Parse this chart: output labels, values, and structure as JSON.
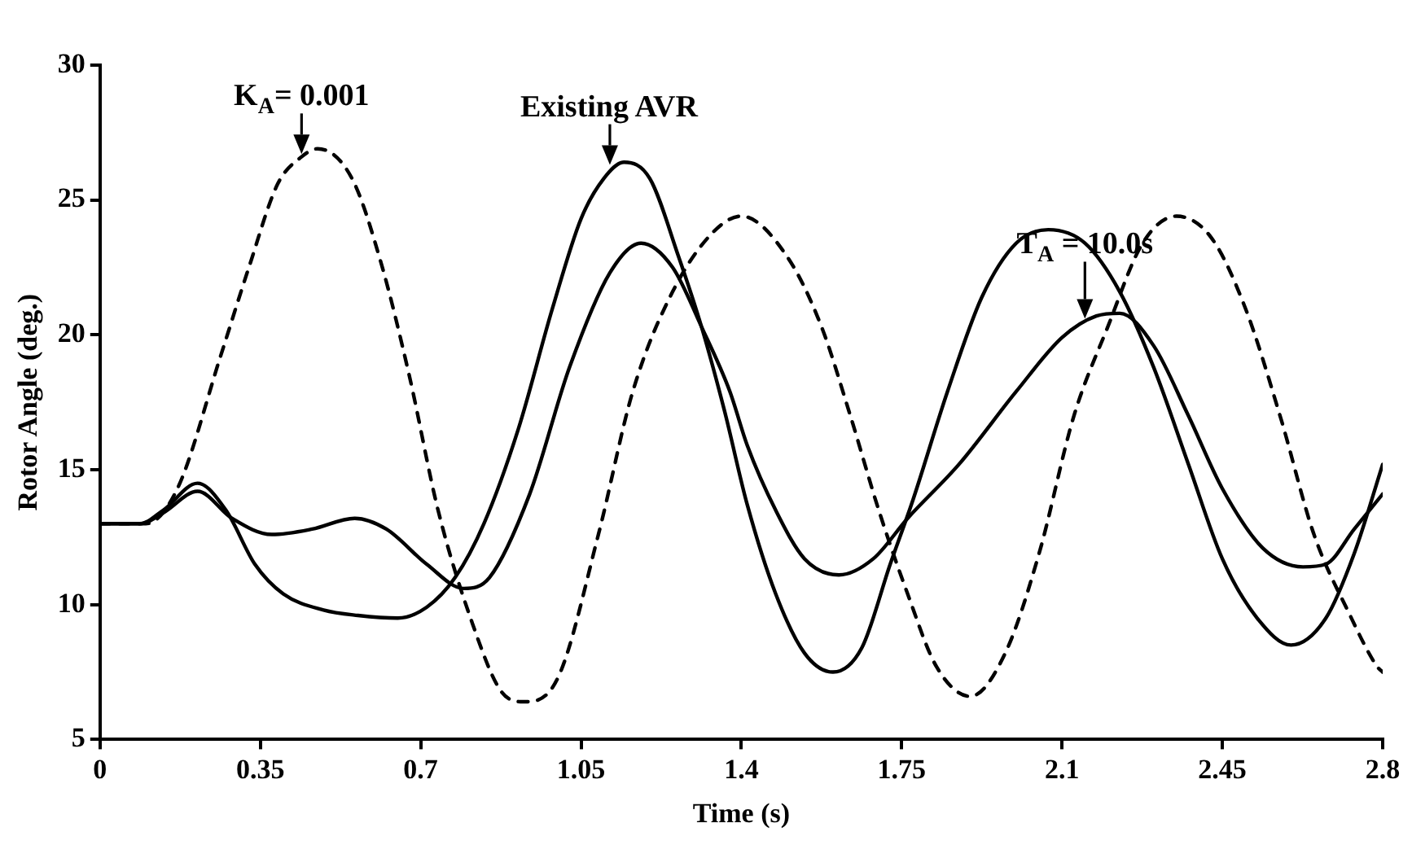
{
  "chart_data": {
    "type": "line",
    "xlabel": "Time (s)",
    "ylabel": "Rotor Angle (deg.)",
    "xlim": [
      0,
      2.8
    ],
    "xticks": [
      0,
      0.35,
      0.7,
      1.05,
      1.4,
      1.75,
      2.1,
      2.45,
      2.8
    ],
    "ylim": [
      5,
      30
    ],
    "yticks": [
      5,
      10,
      15,
      20,
      25,
      30
    ],
    "grid": false,
    "legend": false,
    "marker": "none",
    "series": [
      {
        "color": "#000000",
        "line_style": "dashed",
        "x": [
          0,
          0.1,
          0.169,
          0.263,
          0.325,
          0.388,
          0.44,
          0.475,
          0.55,
          0.613,
          0.675,
          0.738,
          0.813,
          0.875,
          0.925,
          1.0,
          1.088,
          1.163,
          1.25,
          1.338,
          1.4,
          1.5,
          1.575,
          1.638,
          1.7,
          1.763,
          1.826,
          1.9,
          1.976,
          2.05,
          2.126,
          2.2,
          2.276,
          2.35,
          2.426,
          2.5,
          2.576,
          2.65,
          2.726,
          2.788,
          2.8
        ],
        "values": [
          13,
          13,
          14.3,
          19.2,
          22.5,
          25.6,
          26.6,
          26.9,
          25.8,
          22.7,
          18.5,
          13.5,
          9.3,
          6.8,
          6.4,
          7.3,
          12.6,
          17.9,
          21.6,
          23.8,
          24.4,
          22.9,
          20.3,
          17,
          13.5,
          10.4,
          7.7,
          6.6,
          8.2,
          11.9,
          17,
          20.3,
          23.4,
          24.4,
          23.6,
          21,
          17,
          12.6,
          9.7,
          7.7,
          7.5
        ]
      },
      {
        "color": "#000000",
        "line_style": "solid",
        "x": [
          0,
          0.087,
          0.138,
          0.213,
          0.275,
          0.338,
          0.4,
          0.488,
          0.563,
          0.65,
          0.713,
          0.775,
          0.838,
          0.913,
          0.988,
          1.05,
          1.1,
          1.144,
          1.2,
          1.263,
          1.313,
          1.363,
          1.413,
          1.475,
          1.538,
          1.6,
          1.663,
          1.725,
          1.775,
          1.85,
          1.925,
          2.0,
          2.07,
          2.15,
          2.226,
          2.3,
          2.376,
          2.45,
          2.526,
          2.6,
          2.676,
          2.738,
          2.8
        ],
        "values": [
          13,
          13,
          13.5,
          14.5,
          13.5,
          11.5,
          10.4,
          9.8,
          9.6,
          9.5,
          9.9,
          11,
          13,
          16.5,
          21,
          24.3,
          25.8,
          26.4,
          25.8,
          22.9,
          20.3,
          17.2,
          13.7,
          10.4,
          8.2,
          7.5,
          8.4,
          11.5,
          13.9,
          17.9,
          21.4,
          23.4,
          23.9,
          23.4,
          21.6,
          18.8,
          15.2,
          11.7,
          9.5,
          8.5,
          9.5,
          11.9,
          15.2
        ]
      },
      {
        "color": "#000000",
        "line_style": "solid",
        "x": [
          0,
          0.087,
          0.138,
          0.213,
          0.288,
          0.375,
          0.463,
          0.556,
          0.625,
          0.713,
          0.794,
          0.85,
          0.938,
          1.025,
          1.113,
          1.181,
          1.25,
          1.313,
          1.375,
          1.413,
          1.475,
          1.538,
          1.613,
          1.688,
          1.763,
          1.875,
          2.0,
          2.1,
          2.175,
          2.226,
          2.3,
          2.376,
          2.45,
          2.538,
          2.626,
          2.676,
          2.738,
          2.8
        ],
        "values": [
          13,
          13,
          13.4,
          14.2,
          13.2,
          12.6,
          12.8,
          13.2,
          12.8,
          11.5,
          10.6,
          11,
          14.1,
          18.8,
          22.3,
          23.4,
          22.5,
          20.3,
          17.9,
          15.9,
          13.5,
          11.7,
          11.1,
          11.7,
          13.2,
          15.2,
          17.9,
          19.9,
          20.7,
          20.8,
          19.6,
          17,
          14.3,
          12.1,
          11.4,
          11.5,
          12.8,
          14.1
        ]
      }
    ],
    "annotations": [
      {
        "text": "K$_{A}$= 0.001",
        "x": 0.44,
        "y": 26.7
      },
      {
        "text": "Existing AVR",
        "x": 1.113,
        "y": 26.3
      },
      {
        "text": "T$_{A}$ = 10.0s",
        "x": 2.15,
        "y": 20.6
      }
    ]
  }
}
